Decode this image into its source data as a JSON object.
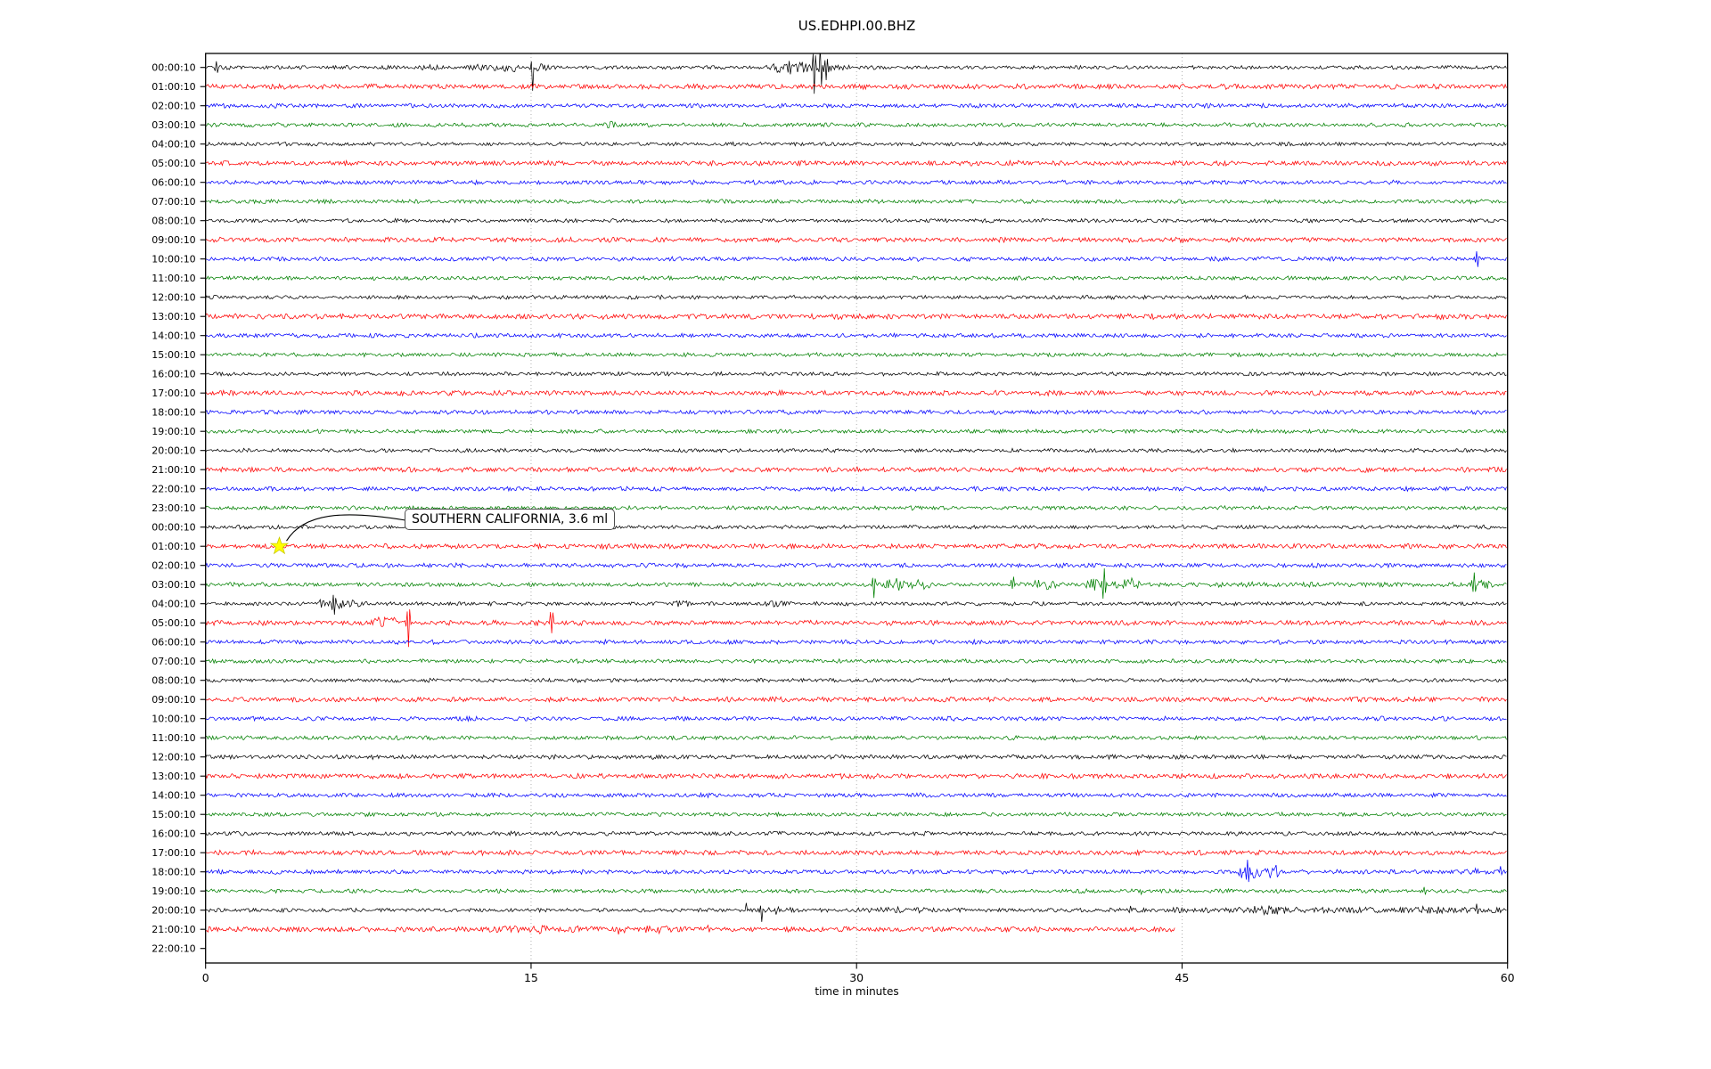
{
  "title": "US.EDHPI.00.BHZ",
  "xlabel": "time in minutes",
  "annotation": {
    "text": "SOUTHERN CALIFORNIA, 3.6 ml"
  },
  "chart_data": {
    "type": "helicorder",
    "title": "US.EDHPI.00.BHZ",
    "xlabel": "time in minutes",
    "x_range": [
      0,
      60
    ],
    "x_ticks": [
      0,
      15,
      30,
      45,
      60
    ],
    "gridlines_minutes": [
      15,
      30,
      45
    ],
    "grid": true,
    "trace_colors": [
      "#000000",
      "#ff0000",
      "#0000ff",
      "#008000"
    ],
    "annotation_marker": {
      "row_index": 25,
      "minute": 3.4,
      "star_color": "#ffff00",
      "label": "SOUTHERN CALIFORNIA, 3.6 ml"
    },
    "rows": [
      {
        "label": "00:00:10",
        "color": "#000000",
        "noise": 1.0,
        "events": [
          {
            "e": "sp",
            "t": 0.5,
            "w": 0.12,
            "u": 8,
            "d": 8
          },
          {
            "e": "b",
            "t": 10.2,
            "s": 0.3,
            "a": 1.5
          },
          {
            "e": "b",
            "t": 12.6,
            "s": 0.25,
            "a": 2.5
          },
          {
            "e": "b",
            "t": 13.6,
            "s": 0.35,
            "a": 3
          },
          {
            "e": "b",
            "t": 14.4,
            "s": 0.2,
            "a": 3.5
          },
          {
            "e": "sp",
            "t": 15.05,
            "w": 0.1,
            "u": 6,
            "d": 30
          },
          {
            "e": "b",
            "t": 15.35,
            "s": 0.3,
            "a": 2.5
          },
          {
            "e": "b",
            "t": 26.4,
            "s": 0.25,
            "a": 5
          },
          {
            "e": "sp",
            "t": 26.9,
            "w": 0.12,
            "u": 10,
            "d": 10
          },
          {
            "e": "b",
            "t": 27.6,
            "s": 0.3,
            "a": 7
          },
          {
            "e": "sp",
            "t": 28.05,
            "w": 0.1,
            "u": 26,
            "d": 26
          },
          {
            "e": "sp",
            "t": 28.35,
            "w": 0.1,
            "u": 30,
            "d": 30
          },
          {
            "e": "sp",
            "t": 28.6,
            "w": 0.15,
            "u": 14,
            "d": 14
          },
          {
            "e": "b",
            "t": 29.2,
            "s": 0.3,
            "a": 3
          }
        ]
      },
      {
        "label": "01:00:10",
        "color": "#ff0000",
        "noise": 1.05,
        "events": []
      },
      {
        "label": "02:00:10",
        "color": "#0000ff",
        "noise": 1.0,
        "events": []
      },
      {
        "label": "03:00:10",
        "color": "#008000",
        "noise": 1.0,
        "events": [
          {
            "e": "b",
            "t": 18.6,
            "s": 0.2,
            "a": 2
          }
        ]
      },
      {
        "label": "04:00:10",
        "color": "#000000",
        "noise": 1.0,
        "events": []
      },
      {
        "label": "05:00:10",
        "color": "#ff0000",
        "noise": 1.0,
        "events": []
      },
      {
        "label": "06:00:10",
        "color": "#0000ff",
        "noise": 1.0,
        "events": []
      },
      {
        "label": "07:00:10",
        "color": "#008000",
        "noise": 1.0,
        "events": []
      },
      {
        "label": "08:00:10",
        "color": "#000000",
        "noise": 1.0,
        "events": []
      },
      {
        "label": "09:00:10",
        "color": "#ff0000",
        "noise": 1.0,
        "events": []
      },
      {
        "label": "10:00:10",
        "color": "#0000ff",
        "noise": 1.0,
        "events": [
          {
            "e": "sp",
            "t": 58.6,
            "w": 0.12,
            "u": 9,
            "d": 10
          }
        ]
      },
      {
        "label": "11:00:10",
        "color": "#008000",
        "noise": 1.0,
        "events": []
      },
      {
        "label": "12:00:10",
        "color": "#000000",
        "noise": 1.0,
        "events": []
      },
      {
        "label": "13:00:10",
        "color": "#ff0000",
        "noise": 1.1,
        "events": []
      },
      {
        "label": "14:00:10",
        "color": "#0000ff",
        "noise": 1.0,
        "events": []
      },
      {
        "label": "15:00:10",
        "color": "#008000",
        "noise": 1.0,
        "events": []
      },
      {
        "label": "16:00:10",
        "color": "#000000",
        "noise": 1.0,
        "events": []
      },
      {
        "label": "17:00:10",
        "color": "#ff0000",
        "noise": 1.0,
        "events": [
          {
            "e": "sp",
            "t": 0.8,
            "w": 0.1,
            "u": 4,
            "d": 5
          }
        ]
      },
      {
        "label": "18:00:10",
        "color": "#0000ff",
        "noise": 1.0,
        "events": []
      },
      {
        "label": "19:00:10",
        "color": "#008000",
        "noise": 1.0,
        "events": []
      },
      {
        "label": "20:00:10",
        "color": "#000000",
        "noise": 1.0,
        "events": []
      },
      {
        "label": "21:00:10",
        "color": "#ff0000",
        "noise": 1.0,
        "events": []
      },
      {
        "label": "22:00:10",
        "color": "#0000ff",
        "noise": 1.0,
        "events": [
          {
            "e": "sp",
            "t": 48.7,
            "w": 0.1,
            "u": 2,
            "d": 6
          }
        ]
      },
      {
        "label": "23:00:10",
        "color": "#008000",
        "noise": 1.0,
        "events": []
      },
      {
        "label": "00:00:10",
        "color": "#000000",
        "noise": 1.0,
        "events": []
      },
      {
        "label": "01:00:10",
        "color": "#ff0000",
        "noise": 1.0,
        "events": []
      },
      {
        "label": "02:00:10",
        "color": "#0000ff",
        "noise": 1.0,
        "events": []
      },
      {
        "label": "03:00:10",
        "color": "#008000",
        "noise": 1.0,
        "events": [
          {
            "e": "sp",
            "t": 30.8,
            "w": 0.12,
            "u": 15,
            "d": 16
          },
          {
            "e": "b",
            "t": 31.3,
            "s": 0.2,
            "a": 4
          },
          {
            "e": "b",
            "t": 31.9,
            "s": 0.35,
            "a": 5
          },
          {
            "e": "b",
            "t": 32.9,
            "s": 0.3,
            "a": 4
          },
          {
            "e": "sp",
            "t": 37.2,
            "w": 0.1,
            "u": 14,
            "d": 6
          },
          {
            "e": "b",
            "t": 38.3,
            "s": 0.2,
            "a": 3.5
          },
          {
            "e": "b",
            "t": 39.0,
            "s": 0.25,
            "a": 5
          },
          {
            "e": "b",
            "t": 40.9,
            "s": 0.2,
            "a": 5
          },
          {
            "e": "sp",
            "t": 41.4,
            "w": 0.12,
            "u": 20,
            "d": 21
          },
          {
            "e": "b",
            "t": 42.4,
            "s": 0.3,
            "a": 6
          },
          {
            "e": "b",
            "t": 42.9,
            "s": 0.15,
            "a": 4
          },
          {
            "e": "b",
            "t": 50,
            "s": 6,
            "a": 0.7
          },
          {
            "e": "sp",
            "t": 58.45,
            "w": 0.12,
            "u": 15,
            "d": 16
          },
          {
            "e": "b",
            "t": 58.9,
            "s": 0.3,
            "a": 3
          }
        ]
      },
      {
        "label": "04:00:10",
        "color": "#000000",
        "noise": 1.0,
        "events": [
          {
            "e": "b",
            "t": 5.35,
            "s": 0.15,
            "a": 4
          },
          {
            "e": "sp",
            "t": 5.9,
            "w": 0.13,
            "u": 12,
            "d": 13
          },
          {
            "e": "b",
            "t": 6.3,
            "s": 0.25,
            "a": 4.5
          },
          {
            "e": "b",
            "t": 7.0,
            "s": 0.25,
            "a": 2.5
          },
          {
            "e": "b",
            "t": 21.9,
            "s": 0.2,
            "a": 3
          },
          {
            "e": "b",
            "t": 26.2,
            "s": 0.3,
            "a": 1.8
          }
        ]
      },
      {
        "label": "05:00:10",
        "color": "#ff0000",
        "noise": 1.0,
        "events": [
          {
            "e": "b",
            "t": 8.1,
            "s": 0.25,
            "a": 5
          },
          {
            "e": "b",
            "t": 8.7,
            "s": 0.12,
            "a": 4
          },
          {
            "e": "sp",
            "t": 9.35,
            "w": 0.12,
            "u": 25,
            "d": 27
          },
          {
            "e": "sp",
            "t": 15.25,
            "w": 0.1,
            "u": 3,
            "d": 7
          },
          {
            "e": "sp",
            "t": 15.95,
            "w": 0.12,
            "u": 21,
            "d": 13
          }
        ]
      },
      {
        "label": "06:00:10",
        "color": "#0000ff",
        "noise": 1.0,
        "events": []
      },
      {
        "label": "07:00:10",
        "color": "#008000",
        "noise": 1.0,
        "events": []
      },
      {
        "label": "08:00:10",
        "color": "#000000",
        "noise": 1.0,
        "events": []
      },
      {
        "label": "09:00:10",
        "color": "#ff0000",
        "noise": 1.0,
        "events": []
      },
      {
        "label": "10:00:10",
        "color": "#0000ff",
        "noise": 1.0,
        "events": []
      },
      {
        "label": "11:00:10",
        "color": "#008000",
        "noise": 1.0,
        "events": []
      },
      {
        "label": "12:00:10",
        "color": "#000000",
        "noise": 1.15,
        "events": []
      },
      {
        "label": "13:00:10",
        "color": "#ff0000",
        "noise": 1.0,
        "events": []
      },
      {
        "label": "14:00:10",
        "color": "#0000ff",
        "noise": 1.0,
        "events": []
      },
      {
        "label": "15:00:10",
        "color": "#008000",
        "noise": 1.0,
        "events": []
      },
      {
        "label": "16:00:10",
        "color": "#000000",
        "noise": 1.1,
        "events": []
      },
      {
        "label": "17:00:10",
        "color": "#ff0000",
        "noise": 1.0,
        "events": []
      },
      {
        "label": "18:00:10",
        "color": "#0000ff",
        "noise": 1.0,
        "events": [
          {
            "e": "sp",
            "t": 47.7,
            "w": 0.12,
            "u": 7,
            "d": 8
          },
          {
            "e": "sp",
            "t": 48.0,
            "w": 0.15,
            "u": 15,
            "d": 16
          },
          {
            "e": "b",
            "t": 48.35,
            "s": 0.3,
            "a": 6
          },
          {
            "e": "b",
            "t": 48.9,
            "s": 0.25,
            "a": 3.5
          },
          {
            "e": "b",
            "t": 49.25,
            "s": 0.15,
            "a": 5
          },
          {
            "e": "b",
            "t": 58.4,
            "s": 0.3,
            "a": 2.5
          },
          {
            "e": "sp",
            "t": 59.7,
            "w": 0.1,
            "u": 6,
            "d": 7
          }
        ]
      },
      {
        "label": "19:00:10",
        "color": "#008000",
        "noise": 1.0,
        "events": [
          {
            "e": "sp",
            "t": 43.1,
            "w": 0.1,
            "u": 5,
            "d": 6
          },
          {
            "e": "sp",
            "t": 56.2,
            "w": 0.1,
            "u": 5,
            "d": 4
          }
        ]
      },
      {
        "label": "20:00:10",
        "color": "#000000",
        "noise": 1.0,
        "events": [
          {
            "e": "sp",
            "t": 24.9,
            "w": 0.1,
            "u": 11,
            "d": 4
          },
          {
            "e": "sp",
            "t": 25.6,
            "w": 0.1,
            "u": 4,
            "d": 16
          },
          {
            "e": "b",
            "t": 26.4,
            "s": 0.4,
            "a": 3.5
          },
          {
            "e": "b",
            "t": 31.8,
            "s": 1.2,
            "a": 1.6
          },
          {
            "e": "sp",
            "t": 42.6,
            "w": 0.08,
            "u": 10,
            "d": 3
          },
          {
            "e": "b",
            "t": 48.9,
            "s": 0.8,
            "a": 2.5
          },
          {
            "e": "b",
            "t": 52,
            "s": 7,
            "a": 1.4
          },
          {
            "e": "b",
            "t": 56.5,
            "s": 0.5,
            "a": 1.5
          },
          {
            "e": "sp",
            "t": 58.6,
            "w": 0.1,
            "u": 7,
            "d": 7
          }
        ]
      },
      {
        "label": "21:00:10",
        "color": "#ff0000",
        "noise": 1.05,
        "data_end": 44.7,
        "events": [
          {
            "e": "b",
            "t": 13.9,
            "s": 0.4,
            "a": 2
          },
          {
            "e": "b",
            "t": 15.4,
            "s": 0.3,
            "a": 2.5
          },
          {
            "e": "b",
            "t": 17.1,
            "s": 0.3,
            "a": 2
          },
          {
            "e": "b",
            "t": 19.1,
            "s": 0.3,
            "a": 4
          },
          {
            "e": "b",
            "t": 20.8,
            "s": 0.5,
            "a": 2.5
          },
          {
            "e": "sp",
            "t": 22.85,
            "w": 0.08,
            "u": 6,
            "d": 1
          },
          {
            "e": "sp",
            "t": 23.2,
            "w": 0.08,
            "u": 7,
            "d": 1
          }
        ]
      },
      {
        "label": "22:00:10",
        "color": "#0000ff",
        "noise": 0,
        "no_data": true,
        "events": []
      }
    ]
  }
}
